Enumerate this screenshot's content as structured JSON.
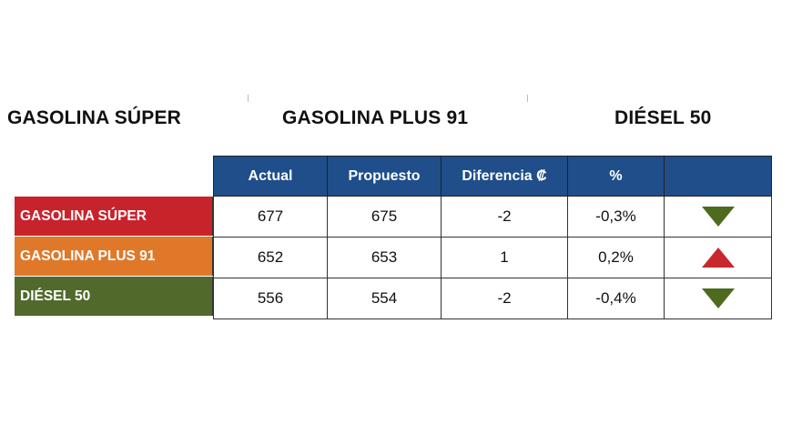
{
  "headings": [
    "GASOLINA SÚPER",
    "GASOLINA PLUS 91",
    "DIÉSEL 50"
  ],
  "table": {
    "columns": [
      "Actual",
      "Propuesto",
      "Diferencia ₡",
      "%",
      ""
    ],
    "rows": [
      {
        "label": "GASOLINA SÚPER",
        "color": "#c8232b",
        "actual": "677",
        "propuesto": "675",
        "diferencia": "-2",
        "percent": "-0,3%",
        "trend": "down"
      },
      {
        "label": "GASOLINA PLUS 91",
        "color": "#e0782a",
        "actual": "652",
        "propuesto": "653",
        "diferencia": "1",
        "percent": "0,2%",
        "trend": "up"
      },
      {
        "label": "DIÉSEL 50",
        "color": "#516a2c",
        "actual": "556",
        "propuesto": "554",
        "diferencia": "-2",
        "percent": "-0,4%",
        "trend": "down"
      }
    ]
  },
  "colors": {
    "header_bg": "#1f4e8a",
    "trend_down": "#4e6a1f",
    "trend_up": "#c8272d"
  }
}
